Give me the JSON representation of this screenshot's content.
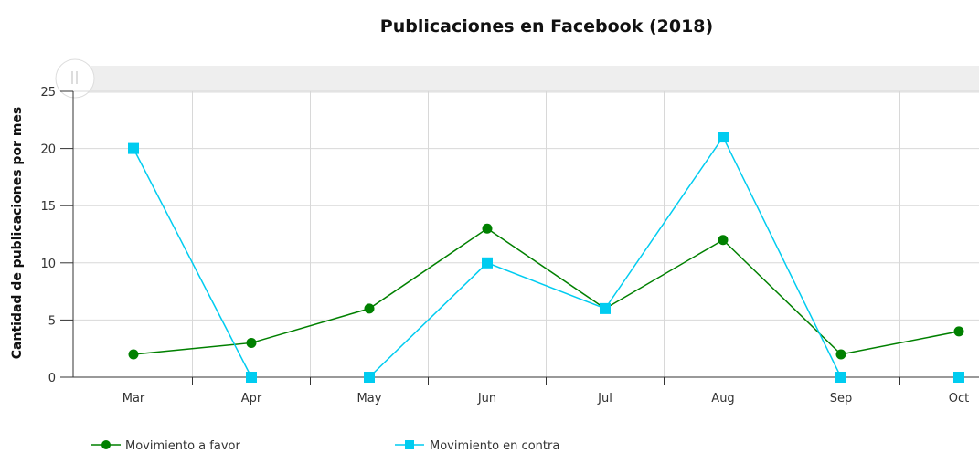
{
  "chart_data": {
    "type": "line",
    "title": "Publicaciones en Facebook (2018)",
    "ylabel": "Cantidad de publicaciones por mes",
    "xlabel": "",
    "categories": [
      "Mar",
      "Apr",
      "May",
      "Jun",
      "Jul",
      "Aug",
      "Sep",
      "Oct"
    ],
    "ylim": [
      0,
      25
    ],
    "yticks": [
      0,
      5,
      10,
      15,
      20,
      25
    ],
    "grid": true,
    "legend_position": "bottom-left",
    "series": [
      {
        "name": "Movimiento a favor",
        "color": "#008000",
        "marker": "circle",
        "values": [
          2,
          3,
          6,
          13,
          6,
          12,
          2,
          4
        ]
      },
      {
        "name": "Movimiento en contra",
        "color": "#00ccf0",
        "marker": "square",
        "segments": [
          [
            0,
            1
          ],
          [
            2,
            3,
            4,
            5,
            6
          ]
        ],
        "values": [
          20,
          0,
          0,
          10,
          6,
          21,
          0,
          0
        ]
      }
    ]
  }
}
